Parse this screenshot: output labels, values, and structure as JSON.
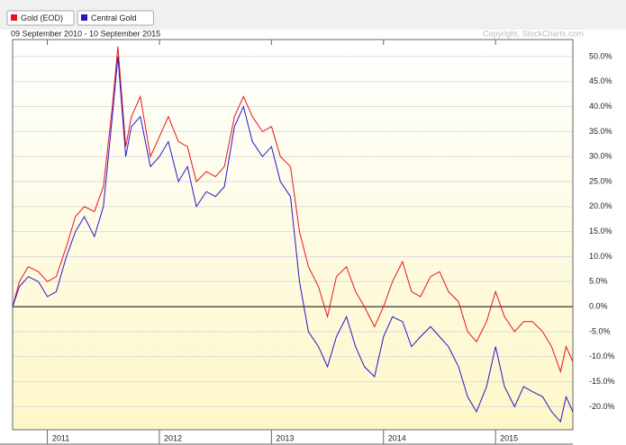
{
  "chart_data": {
    "type": "line",
    "subtitle": "09 September 2010 - 10 September 2015",
    "annotation": "Copyright, StockCharts.com",
    "x": [
      2010.69,
      2010.75,
      2010.83,
      2010.92,
      2011.0,
      2011.08,
      2011.17,
      2011.25,
      2011.33,
      2011.42,
      2011.5,
      2011.58,
      2011.63,
      2011.7,
      2011.75,
      2011.83,
      2011.92,
      2012.0,
      2012.08,
      2012.17,
      2012.25,
      2012.33,
      2012.42,
      2012.5,
      2012.58,
      2012.67,
      2012.75,
      2012.83,
      2012.92,
      2013.0,
      2013.08,
      2013.17,
      2013.25,
      2013.33,
      2013.42,
      2013.5,
      2013.58,
      2013.67,
      2013.75,
      2013.83,
      2013.92,
      2014.0,
      2014.08,
      2014.17,
      2014.25,
      2014.33,
      2014.42,
      2014.5,
      2014.58,
      2014.67,
      2014.75,
      2014.83,
      2014.92,
      2015.0,
      2015.08,
      2015.17,
      2015.25,
      2015.33,
      2015.42,
      2015.5,
      2015.58,
      2015.63,
      2015.69
    ],
    "series": [
      {
        "name": "Gold (EOD)",
        "color": "#e8141b",
        "values": [
          0,
          5,
          8,
          7,
          5,
          6,
          12,
          18,
          20,
          19,
          24,
          40,
          52,
          32,
          38,
          42,
          30,
          34,
          38,
          33,
          32,
          25,
          27,
          26,
          28,
          38,
          42,
          38,
          35,
          36,
          30,
          28,
          15,
          8,
          4,
          -2,
          6,
          8,
          3,
          0,
          -4,
          0,
          5,
          9,
          3,
          2,
          6,
          7,
          3,
          1,
          -5,
          -7,
          -3,
          3,
          -2,
          -5,
          -3,
          -3,
          -5,
          -8,
          -13,
          -8,
          -11
        ]
      },
      {
        "name": "Central Gold",
        "color": "#2a14c8",
        "values": [
          0,
          4,
          6,
          5,
          2,
          3,
          10,
          15,
          18,
          14,
          20,
          38,
          50,
          30,
          36,
          38,
          28,
          30,
          33,
          25,
          28,
          20,
          23,
          22,
          24,
          36,
          40,
          33,
          30,
          32,
          25,
          22,
          5,
          -5,
          -8,
          -12,
          -6,
          -2,
          -8,
          -12,
          -14,
          -6,
          -2,
          -3,
          -8,
          -6,
          -4,
          -6,
          -8,
          -12,
          -18,
          -21,
          -16,
          -8,
          -16,
          -20,
          -16,
          -17,
          -18,
          -21,
          -23,
          -18,
          -21
        ]
      }
    ],
    "xlim": [
      2010.69,
      2015.69
    ],
    "xticks": [
      2011,
      2012,
      2013,
      2014,
      2015
    ],
    "ylim": [
      -24.6,
      53.4
    ],
    "yticks": [
      {
        "value": -20,
        "label": "-20.0%"
      },
      {
        "value": -15,
        "label": "-15.0%"
      },
      {
        "value": -10,
        "label": "-10.0%"
      },
      {
        "value": -5,
        "label": "-5.0%"
      },
      {
        "value": 0,
        "label": "0.0%"
      },
      {
        "value": 5,
        "label": "5.0%"
      },
      {
        "value": 10,
        "label": "10.0%"
      },
      {
        "value": 15,
        "label": "15.0%"
      },
      {
        "value": 20,
        "label": "20.0%"
      },
      {
        "value": 25,
        "label": "25.0%"
      },
      {
        "value": 30,
        "label": "30.0%"
      },
      {
        "value": 35,
        "label": "35.0%"
      },
      {
        "value": 40,
        "label": "40.0%"
      },
      {
        "value": 45,
        "label": "45.0%"
      },
      {
        "value": 50,
        "label": "50.0%"
      }
    ],
    "grid": true
  }
}
